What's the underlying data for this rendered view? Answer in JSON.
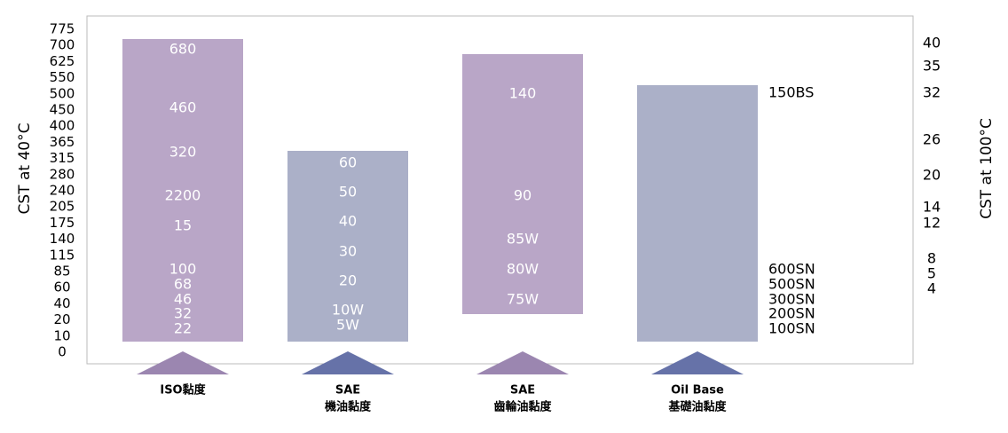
{
  "left_axis": {
    "title": "CST at 40°C",
    "ticks": [
      "775",
      "700",
      "625",
      "550",
      "500",
      "450",
      "400",
      "365",
      "315",
      "280",
      "240",
      "205",
      "175",
      "140",
      "115",
      "85",
      "60",
      "40",
      "20",
      "10",
      "0"
    ]
  },
  "right_axis": {
    "title": "CST at 100°C",
    "ticks": [
      "40",
      "35",
      "32",
      "26",
      "20",
      "14",
      "12",
      "8",
      "5",
      "4"
    ]
  },
  "columns": [
    {
      "labels": [
        "680",
        "460",
        "320",
        "2200",
        "15",
        "100",
        "68",
        "46",
        "32",
        "22"
      ],
      "caption": [
        "ISO黏度"
      ]
    },
    {
      "labels": [
        "60",
        "50",
        "40",
        "30",
        "20",
        "10W",
        "5W"
      ],
      "caption": [
        "SAE",
        "機油黏度"
      ]
    },
    {
      "labels": [
        "140",
        "90",
        "85W",
        "80W",
        "75W"
      ],
      "caption": [
        "SAE",
        "齒輪油黏度"
      ]
    },
    {
      "labels": [
        "150BS",
        "600SN",
        "500SN",
        "300SN",
        "200SN",
        "100SN"
      ],
      "caption": [
        "Oil Base",
        "基礎油黏度"
      ]
    }
  ]
}
